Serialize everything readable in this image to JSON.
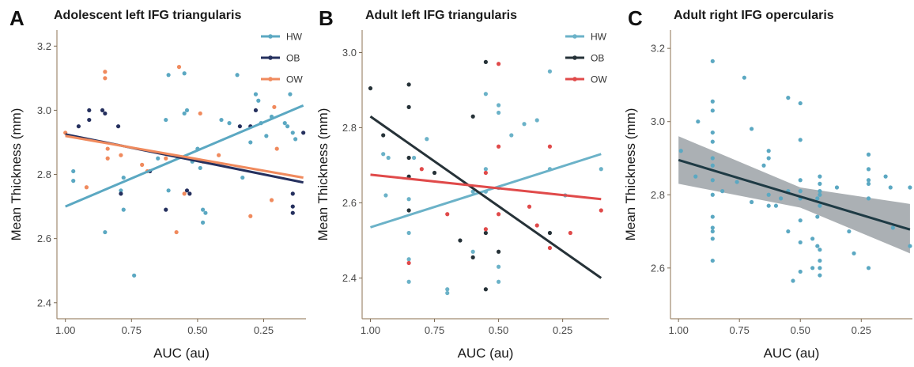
{
  "chart_data": [
    {
      "type": "scatter",
      "letter": "A",
      "title": "Adolescent left IFG triangularis",
      "xlabel": "AUC (au)",
      "ylabel": "Mean Thickness (mm)",
      "x_reversed": true,
      "xlim": [
        1.02,
        0.09
      ],
      "ylim": [
        2.36,
        3.25
      ],
      "xticks": [
        1.0,
        0.75,
        0.5,
        0.25
      ],
      "xtick_labels": [
        "1.00",
        "0.75",
        "0.50",
        "0.25"
      ],
      "yticks": [
        2.4,
        2.6,
        2.8,
        3.0,
        3.2
      ],
      "ytick_labels": [
        "2.4",
        "2.6",
        "2.8",
        "3.0",
        "3.2"
      ],
      "legend_position": "top-right",
      "series": [
        {
          "name": "HW",
          "color": "#5ba8c2",
          "fit": [
            [
              1.0,
              2.7
            ],
            [
              0.1,
              3.015
            ]
          ],
          "points": [
            [
              0.97,
              2.81
            ],
            [
              0.97,
              2.78
            ],
            [
              0.85,
              2.62
            ],
            [
              0.79,
              2.75
            ],
            [
              0.78,
              2.79
            ],
            [
              0.78,
              2.69
            ],
            [
              0.74,
              2.485
            ],
            [
              0.65,
              2.85
            ],
            [
              0.62,
              2.97
            ],
            [
              0.61,
              3.11
            ],
            [
              0.61,
              2.75
            ],
            [
              0.55,
              3.115
            ],
            [
              0.54,
              3.0
            ],
            [
              0.55,
              2.99
            ],
            [
              0.52,
              2.84
            ],
            [
              0.5,
              2.88
            ],
            [
              0.49,
              2.82
            ],
            [
              0.48,
              2.69
            ],
            [
              0.48,
              2.65
            ],
            [
              0.47,
              2.68
            ],
            [
              0.41,
              2.97
            ],
            [
              0.38,
              2.96
            ],
            [
              0.35,
              3.11
            ],
            [
              0.33,
              2.79
            ],
            [
              0.3,
              2.9
            ],
            [
              0.28,
              3.05
            ],
            [
              0.27,
              3.03
            ],
            [
              0.26,
              2.96
            ],
            [
              0.24,
              2.92
            ],
            [
              0.22,
              2.98
            ],
            [
              0.17,
              2.96
            ],
            [
              0.16,
              2.95
            ],
            [
              0.15,
              3.05
            ],
            [
              0.14,
              2.93
            ],
            [
              0.13,
              2.91
            ]
          ]
        },
        {
          "name": "OB",
          "color": "#25305e",
          "fit": [
            [
              1.0,
              2.925
            ],
            [
              0.1,
              2.775
            ]
          ],
          "points": [
            [
              0.95,
              2.95
            ],
            [
              0.91,
              2.97
            ],
            [
              0.91,
              3.0
            ],
            [
              0.86,
              3.0
            ],
            [
              0.85,
              2.99
            ],
            [
              0.8,
              2.95
            ],
            [
              0.79,
              2.74
            ],
            [
              0.68,
              2.81
            ],
            [
              0.62,
              2.69
            ],
            [
              0.54,
              2.75
            ],
            [
              0.53,
              2.74
            ],
            [
              0.34,
              2.95
            ],
            [
              0.3,
              2.95
            ],
            [
              0.28,
              3.0
            ],
            [
              0.14,
              2.74
            ],
            [
              0.14,
              2.7
            ],
            [
              0.14,
              2.68
            ],
            [
              0.1,
              2.93
            ]
          ]
        },
        {
          "name": "OW",
          "color": "#f08a5d",
          "fit": [
            [
              1.0,
              2.92
            ],
            [
              0.1,
              2.79
            ]
          ],
          "points": [
            [
              1.0,
              2.93
            ],
            [
              0.92,
              2.76
            ],
            [
              0.85,
              3.12
            ],
            [
              0.85,
              3.1
            ],
            [
              0.84,
              2.88
            ],
            [
              0.84,
              2.85
            ],
            [
              0.79,
              2.86
            ],
            [
              0.71,
              2.83
            ],
            [
              0.69,
              2.81
            ],
            [
              0.62,
              2.85
            ],
            [
              0.58,
              2.62
            ],
            [
              0.57,
              3.135
            ],
            [
              0.55,
              2.74
            ],
            [
              0.49,
              2.99
            ],
            [
              0.48,
              2.84
            ],
            [
              0.42,
              2.86
            ],
            [
              0.3,
              2.67
            ],
            [
              0.22,
              2.72
            ],
            [
              0.21,
              3.01
            ],
            [
              0.2,
              2.88
            ]
          ]
        }
      ]
    },
    {
      "type": "scatter",
      "letter": "B",
      "title": "Adult left IFG triangularis",
      "xlabel": "AUC (au)",
      "ylabel": "Mean Thickness (mm)",
      "x_reversed": true,
      "xlim": [
        1.02,
        0.07
      ],
      "ylim": [
        2.3,
        3.06
      ],
      "xticks": [
        1.0,
        0.75,
        0.5,
        0.25
      ],
      "xtick_labels": [
        "1.00",
        "0.75",
        "0.50",
        "0.25"
      ],
      "yticks": [
        2.4,
        2.6,
        2.8,
        3.0
      ],
      "ytick_labels": [
        "2.4",
        "2.6",
        "2.8",
        "3.0"
      ],
      "legend_position": "top-right",
      "series": [
        {
          "name": "HW",
          "color": "#6bb2c8",
          "fit": [
            [
              1.0,
              2.535
            ],
            [
              0.1,
              2.73
            ]
          ],
          "points": [
            [
              0.95,
              2.73
            ],
            [
              0.94,
              2.62
            ],
            [
              0.93,
              2.72
            ],
            [
              0.85,
              2.39
            ],
            [
              0.85,
              2.45
            ],
            [
              0.85,
              2.52
            ],
            [
              0.85,
              2.61
            ],
            [
              0.83,
              2.72
            ],
            [
              0.78,
              2.77
            ],
            [
              0.7,
              2.36
            ],
            [
              0.7,
              2.37
            ],
            [
              0.6,
              2.47
            ],
            [
              0.6,
              2.63
            ],
            [
              0.55,
              2.69
            ],
            [
              0.55,
              2.89
            ],
            [
              0.55,
              2.63
            ],
            [
              0.5,
              2.84
            ],
            [
              0.5,
              2.86
            ],
            [
              0.5,
              2.64
            ],
            [
              0.5,
              2.43
            ],
            [
              0.5,
              2.39
            ],
            [
              0.45,
              2.78
            ],
            [
              0.4,
              2.81
            ],
            [
              0.35,
              2.82
            ],
            [
              0.3,
              2.69
            ],
            [
              0.3,
              2.95
            ],
            [
              0.24,
              2.62
            ],
            [
              0.1,
              2.69
            ]
          ]
        },
        {
          "name": "OB",
          "color": "#263238",
          "fit": [
            [
              1.0,
              2.83
            ],
            [
              0.1,
              2.4
            ]
          ],
          "points": [
            [
              1.0,
              2.905
            ],
            [
              0.95,
              2.78
            ],
            [
              0.85,
              2.915
            ],
            [
              0.85,
              2.855
            ],
            [
              0.85,
              2.72
            ],
            [
              0.85,
              2.67
            ],
            [
              0.85,
              2.58
            ],
            [
              0.75,
              2.68
            ],
            [
              0.65,
              2.5
            ],
            [
              0.6,
              2.83
            ],
            [
              0.6,
              2.455
            ],
            [
              0.55,
              2.975
            ],
            [
              0.55,
              2.52
            ],
            [
              0.55,
              2.37
            ],
            [
              0.5,
              2.47
            ],
            [
              0.3,
              2.52
            ]
          ]
        },
        {
          "name": "OW",
          "color": "#e04a4a",
          "fit": [
            [
              1.0,
              2.675
            ],
            [
              0.1,
              2.61
            ]
          ],
          "points": [
            [
              0.85,
              2.44
            ],
            [
              0.8,
              2.69
            ],
            [
              0.7,
              2.57
            ],
            [
              0.55,
              2.68
            ],
            [
              0.55,
              2.53
            ],
            [
              0.5,
              2.97
            ],
            [
              0.5,
              2.75
            ],
            [
              0.5,
              2.57
            ],
            [
              0.38,
              2.59
            ],
            [
              0.35,
              2.54
            ],
            [
              0.3,
              2.75
            ],
            [
              0.3,
              2.48
            ],
            [
              0.22,
              2.52
            ],
            [
              0.1,
              2.58
            ]
          ]
        }
      ]
    },
    {
      "type": "scatter",
      "letter": "C",
      "title": "Adult right IFG opercularis",
      "xlabel": "AUC (au)",
      "ylabel": "Mean Thickness (mm)",
      "x_reversed": true,
      "xlim": [
        1.02,
        0.04
      ],
      "ylim": [
        2.47,
        3.25
      ],
      "xticks": [
        1.0,
        0.75,
        0.5,
        0.25
      ],
      "xtick_labels": [
        "1.00",
        "0.75",
        "0.50",
        "0.25"
      ],
      "yticks": [
        2.6,
        2.8,
        3.0,
        3.2
      ],
      "ytick_labels": [
        "2.6",
        "2.8",
        "3.0",
        "3.2"
      ],
      "legend_position": "none",
      "series": [
        {
          "name": "",
          "color": "#5ba8c2",
          "fit": [
            [
              1.0,
              2.895
            ],
            [
              0.05,
              2.705
            ]
          ],
          "ci_upper": [
            [
              1.0,
              2.96
            ],
            [
              0.5,
              2.82
            ],
            [
              0.05,
              2.775
            ]
          ],
          "ci_lower": [
            [
              1.0,
              2.83
            ],
            [
              0.5,
              2.765
            ],
            [
              0.05,
              2.64
            ]
          ],
          "points": [
            [
              0.99,
              2.92
            ],
            [
              0.93,
              2.85
            ],
            [
              0.92,
              3.0
            ],
            [
              0.86,
              3.165
            ],
            [
              0.86,
              3.055
            ],
            [
              0.86,
              3.03
            ],
            [
              0.86,
              2.97
            ],
            [
              0.86,
              2.945
            ],
            [
              0.86,
              2.9
            ],
            [
              0.86,
              2.88
            ],
            [
              0.86,
              2.84
            ],
            [
              0.86,
              2.8
            ],
            [
              0.86,
              2.74
            ],
            [
              0.86,
              2.71
            ],
            [
              0.86,
              2.7
            ],
            [
              0.86,
              2.68
            ],
            [
              0.86,
              2.62
            ],
            [
              0.82,
              2.81
            ],
            [
              0.76,
              2.835
            ],
            [
              0.73,
              3.12
            ],
            [
              0.7,
              2.98
            ],
            [
              0.7,
              2.78
            ],
            [
              0.65,
              2.88
            ],
            [
              0.63,
              2.92
            ],
            [
              0.63,
              2.9
            ],
            [
              0.63,
              2.8
            ],
            [
              0.63,
              2.77
            ],
            [
              0.6,
              2.77
            ],
            [
              0.58,
              2.79
            ],
            [
              0.55,
              3.065
            ],
            [
              0.55,
              2.81
            ],
            [
              0.55,
              2.7
            ],
            [
              0.53,
              2.565
            ],
            [
              0.5,
              3.05
            ],
            [
              0.5,
              2.95
            ],
            [
              0.5,
              2.84
            ],
            [
              0.5,
              2.81
            ],
            [
              0.5,
              2.79
            ],
            [
              0.5,
              2.73
            ],
            [
              0.5,
              2.67
            ],
            [
              0.5,
              2.59
            ],
            [
              0.45,
              2.68
            ],
            [
              0.45,
              2.6
            ],
            [
              0.43,
              2.79
            ],
            [
              0.43,
              2.74
            ],
            [
              0.43,
              2.66
            ],
            [
              0.42,
              2.85
            ],
            [
              0.42,
              2.83
            ],
            [
              0.42,
              2.81
            ],
            [
              0.42,
              2.8
            ],
            [
              0.42,
              2.77
            ],
            [
              0.42,
              2.65
            ],
            [
              0.42,
              2.62
            ],
            [
              0.42,
              2.6
            ],
            [
              0.42,
              2.58
            ],
            [
              0.35,
              2.82
            ],
            [
              0.3,
              2.7
            ],
            [
              0.28,
              2.64
            ],
            [
              0.22,
              2.91
            ],
            [
              0.22,
              2.87
            ],
            [
              0.22,
              2.84
            ],
            [
              0.22,
              2.83
            ],
            [
              0.22,
              2.79
            ],
            [
              0.22,
              2.6
            ],
            [
              0.15,
              2.85
            ],
            [
              0.13,
              2.82
            ],
            [
              0.12,
              2.71
            ],
            [
              0.05,
              2.66
            ],
            [
              0.05,
              2.82
            ]
          ]
        }
      ]
    }
  ]
}
